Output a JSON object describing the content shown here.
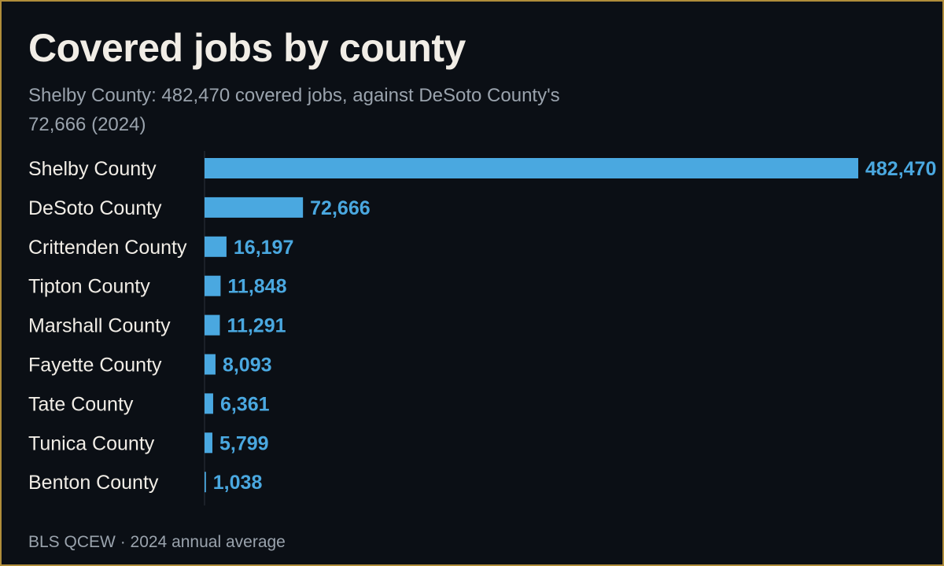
{
  "title": "Covered jobs by county",
  "subtitle": "Shelby County: 482,470 covered jobs, against DeSoto County's 72,666 (2024)",
  "source": "BLS QCEW · 2024 annual average",
  "colors": {
    "background": "#0b0f15",
    "border": "#b08d3a",
    "bar": "#4aa8e0",
    "title": "#f1ede6",
    "muted": "#9aa3ad"
  },
  "chart_data": {
    "type": "bar",
    "orientation": "horizontal",
    "categories": [
      "Shelby County",
      "DeSoto County",
      "Crittenden County",
      "Tipton County",
      "Marshall County",
      "Fayette County",
      "Tate County",
      "Tunica County",
      "Benton County"
    ],
    "values": [
      482470,
      72666,
      16197,
      11848,
      11291,
      8093,
      6361,
      5799,
      1038
    ],
    "value_labels": [
      "482,470",
      "72,666",
      "16,197",
      "11,848",
      "11,291",
      "8,093",
      "6,361",
      "5,799",
      "1,038"
    ],
    "xlim": [
      0,
      482470
    ],
    "grid": false,
    "legend": "none"
  }
}
